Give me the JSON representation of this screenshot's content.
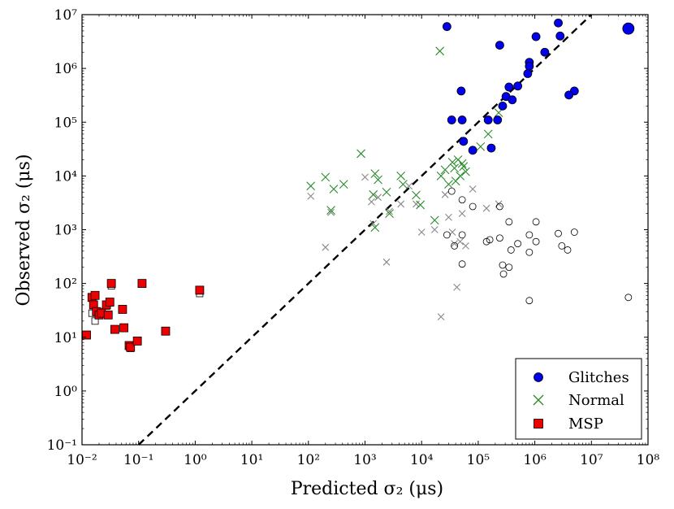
{
  "chart_data": {
    "type": "scatter",
    "title": "",
    "xlabel": "Predicted σ₂ (μs)",
    "ylabel": "Observed σ₂ (μs)",
    "xscale": "log",
    "yscale": "log",
    "xlim": [
      0.01,
      100000000
    ],
    "ylim": [
      0.1,
      10000000
    ],
    "x_ticks": [
      "10⁻²",
      "10⁻¹",
      "10⁰",
      "10¹",
      "10²",
      "10³",
      "10⁴",
      "10⁵",
      "10⁶",
      "10⁷",
      "10⁸"
    ],
    "y_ticks": [
      "10⁻¹",
      "10⁰",
      "10¹",
      "10²",
      "10³",
      "10⁴",
      "10⁵",
      "10⁶",
      "10⁷"
    ],
    "reference_line": {
      "label": "y = x",
      "style": "dashed",
      "color": "#000000"
    },
    "legend": {
      "location": "lower-right",
      "entries": [
        {
          "label": "Glitches",
          "marker": "circle",
          "color": "#0000ee"
        },
        {
          "label": "Normal",
          "marker": "x",
          "color": "#2a8a2a"
        },
        {
          "label": "MSP",
          "marker": "square",
          "color": "#ee0000"
        }
      ]
    },
    "series": [
      {
        "name": "Glitches",
        "marker": "circle",
        "color": "#0000ee",
        "points": [
          [
            28000,
            6000000
          ],
          [
            240000,
            2700000
          ],
          [
            1050000,
            3900000
          ],
          [
            2600000,
            7000000
          ],
          [
            2800000,
            4000000
          ],
          [
            1500000,
            2000000
          ],
          [
            800000,
            1300000
          ],
          [
            800000,
            1100000
          ],
          [
            750000,
            800000
          ],
          [
            50000,
            380000
          ],
          [
            5000000,
            380000
          ],
          [
            4000000,
            320000
          ],
          [
            500000,
            470000
          ],
          [
            350000,
            450000
          ],
          [
            310000,
            300000
          ],
          [
            400000,
            260000
          ],
          [
            270000,
            200000
          ],
          [
            34000,
            110000
          ],
          [
            52000,
            110000
          ],
          [
            150000,
            110000
          ],
          [
            220000,
            110000
          ],
          [
            55000,
            44000
          ],
          [
            80000,
            30000
          ],
          [
            170000,
            33000
          ],
          [
            45000000,
            5500000
          ]
        ]
      },
      {
        "name": "Normal",
        "marker": "x",
        "color": "#2a8a2a",
        "points": [
          [
            21000,
            2100000
          ],
          [
            230000,
            150000
          ],
          [
            110000,
            35000
          ],
          [
            150000,
            60000
          ],
          [
            110,
            6500
          ],
          [
            200,
            9500
          ],
          [
            250,
            2300
          ],
          [
            280,
            5700
          ],
          [
            420,
            7000
          ],
          [
            850,
            26000
          ],
          [
            1500,
            11000
          ],
          [
            1700,
            8500
          ],
          [
            1400,
            4500
          ],
          [
            1500,
            1100
          ],
          [
            2400,
            5000
          ],
          [
            2700,
            2000
          ],
          [
            4300,
            10000
          ],
          [
            4700,
            7000
          ],
          [
            8000,
            4400
          ],
          [
            9500,
            2900
          ],
          [
            17000,
            1500
          ],
          [
            22000,
            10000
          ],
          [
            26000,
            13000
          ],
          [
            30000,
            7000
          ],
          [
            35000,
            18000
          ],
          [
            38000,
            14000
          ],
          [
            44000,
            20000
          ],
          [
            48000,
            10000
          ],
          [
            52000,
            17000
          ],
          [
            60000,
            12000
          ],
          [
            40000,
            8000
          ],
          [
            55000,
            15000
          ]
        ]
      },
      {
        "name": "MSP",
        "marker": "square",
        "color": "#ee0000",
        "points": [
          [
            0.012,
            11
          ],
          [
            0.015,
            55
          ],
          [
            0.017,
            60
          ],
          [
            0.016,
            40
          ],
          [
            0.018,
            30
          ],
          [
            0.02,
            26
          ],
          [
            0.022,
            28
          ],
          [
            0.027,
            40
          ],
          [
            0.031,
            45
          ],
          [
            0.029,
            26
          ],
          [
            0.033,
            100
          ],
          [
            0.038,
            14
          ],
          [
            0.052,
            33
          ],
          [
            0.055,
            15
          ],
          [
            0.068,
            7
          ],
          [
            0.072,
            6.5
          ],
          [
            0.095,
            8.5
          ],
          [
            0.115,
            100
          ],
          [
            0.3,
            13
          ],
          [
            1.2,
            75
          ]
        ]
      },
      {
        "name": "Glitches (predicted)",
        "marker": "open-circle",
        "color": "#000000",
        "in_legend": false,
        "points": [
          [
            34000,
            5200
          ],
          [
            52000,
            3600
          ],
          [
            80000,
            2700
          ],
          [
            240000,
            2700
          ],
          [
            28000,
            800
          ],
          [
            52000,
            800
          ],
          [
            38000,
            500
          ],
          [
            52000,
            230
          ],
          [
            140000,
            600
          ],
          [
            160000,
            650
          ],
          [
            240000,
            700
          ],
          [
            350000,
            1400
          ],
          [
            500000,
            550
          ],
          [
            380000,
            420
          ],
          [
            350000,
            200
          ],
          [
            270000,
            220
          ],
          [
            280000,
            150
          ],
          [
            800000,
            800
          ],
          [
            800000,
            380
          ],
          [
            1050000,
            1400
          ],
          [
            1050000,
            600
          ],
          [
            2600000,
            850
          ],
          [
            3000000,
            500
          ],
          [
            3800000,
            420
          ],
          [
            5000000,
            900
          ],
          [
            800000,
            48
          ],
          [
            45000000,
            55
          ]
        ]
      },
      {
        "name": "Normal (predicted)",
        "marker": "x",
        "color": "#888888",
        "in_legend": false,
        "points": [
          [
            110,
            4200
          ],
          [
            200,
            470
          ],
          [
            250,
            2100
          ],
          [
            1000,
            9500
          ],
          [
            1300,
            3300
          ],
          [
            1700,
            4000
          ],
          [
            1400,
            1300
          ],
          [
            2400,
            250
          ],
          [
            2700,
            2200
          ],
          [
            4300,
            3000
          ],
          [
            6000,
            6500
          ],
          [
            8000,
            3000
          ],
          [
            10000,
            900
          ],
          [
            17000,
            1000
          ],
          [
            22000,
            24
          ],
          [
            26000,
            4500
          ],
          [
            30000,
            1700
          ],
          [
            35000,
            900
          ],
          [
            38000,
            550
          ],
          [
            42000,
            85
          ],
          [
            48000,
            600
          ],
          [
            52000,
            2000
          ],
          [
            60000,
            500
          ],
          [
            80000,
            5700
          ],
          [
            140000,
            2500
          ],
          [
            230000,
            3000
          ]
        ]
      },
      {
        "name": "MSP (predicted)",
        "marker": "open-square",
        "color": "#000000",
        "in_legend": false,
        "points": [
          [
            0.015,
            28
          ],
          [
            0.017,
            20
          ],
          [
            0.02,
            30
          ],
          [
            0.027,
            38
          ],
          [
            0.033,
            90
          ],
          [
            0.068,
            6.8
          ],
          [
            0.072,
            6.2
          ],
          [
            1.2,
            65
          ]
        ]
      }
    ]
  }
}
